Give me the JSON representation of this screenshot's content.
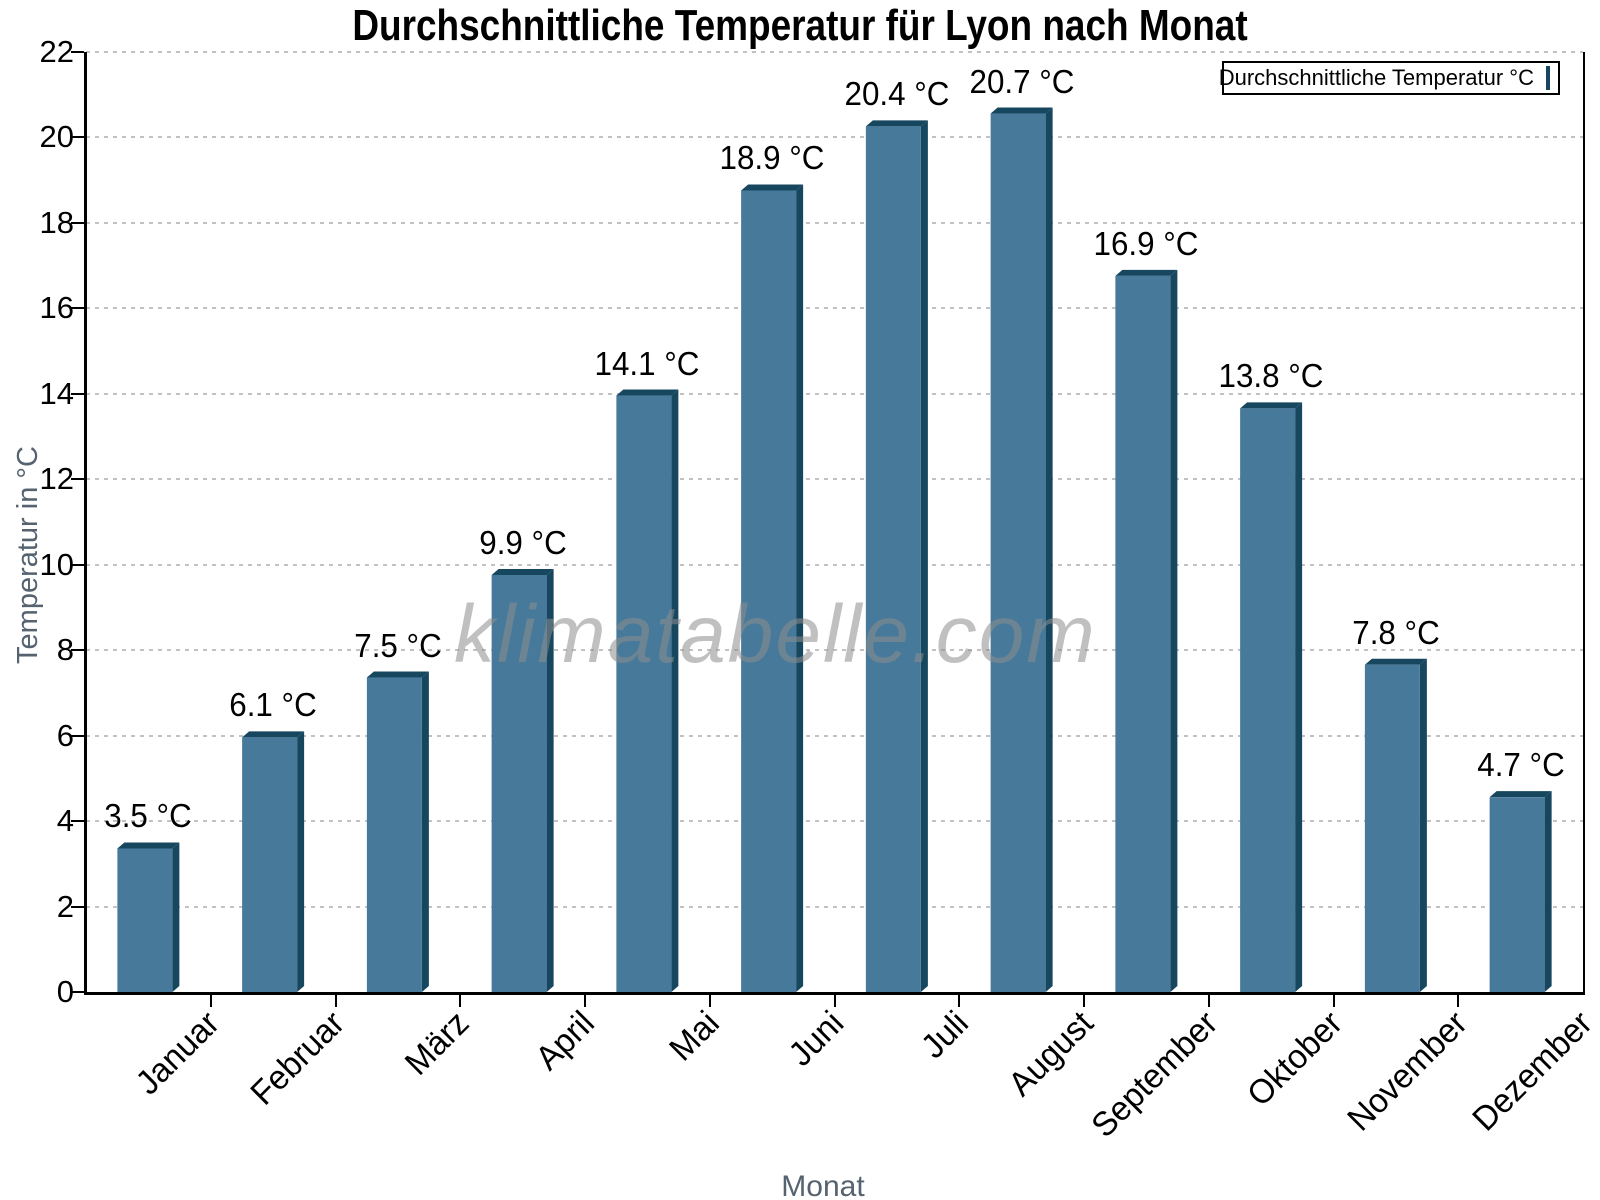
{
  "chart_data": {
    "type": "bar",
    "title": "Durchschnittliche Temperatur für Lyon nach Monat",
    "xlabel": "Monat",
    "ylabel": "Temperatur in °C",
    "legend_label": "Durchschnittliche Temperatur °C",
    "legend_position": "top-right",
    "watermark": "klimatabelle.com",
    "categories": [
      "Januar",
      "Februar",
      "März",
      "April",
      "Mai",
      "Juni",
      "Juli",
      "August",
      "September",
      "Oktober",
      "November",
      "Dezember"
    ],
    "values": [
      3.5,
      6.1,
      7.5,
      9.9,
      14.1,
      18.9,
      20.4,
      20.7,
      16.9,
      13.8,
      7.8,
      4.7
    ],
    "value_labels": [
      "3.5 °C",
      "6.1 °C",
      "7.5 °C",
      "9.9 °C",
      "14.1 °C",
      "18.9 °C",
      "20.4 °C",
      "20.7 °C",
      "16.9 °C",
      "13.8 °C",
      "7.8 °C",
      "4.7 °C"
    ],
    "unit": "°C",
    "ylim": [
      0,
      22
    ],
    "ytick_step": 2,
    "grid": "horizontal-dotted",
    "colors": {
      "bar_face": "#47799B",
      "bar_edge_dark": "#17465F",
      "grid": "#c2c2c2",
      "axis": "#000000",
      "axis_title": "#55626F",
      "watermark": "#8d8d8d"
    }
  }
}
